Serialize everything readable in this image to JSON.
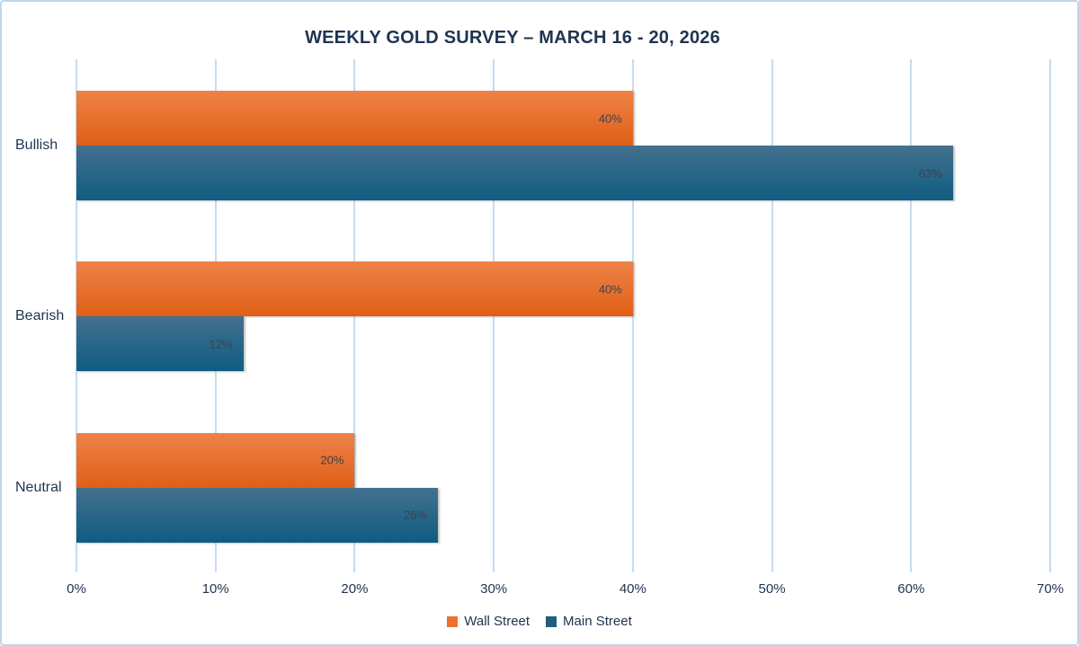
{
  "title": "WEEKLY GOLD SURVEY – MARCH 16 - 20, 2026",
  "chart_data": {
    "type": "bar",
    "orientation": "horizontal",
    "title": "WEEKLY GOLD SURVEY – MARCH 16 - 20, 2026",
    "categories": [
      "Bullish",
      "Bearish",
      "Neutral"
    ],
    "series": [
      {
        "name": "Wall Street",
        "values": [
          40,
          40,
          20
        ],
        "labels": [
          "40%",
          "40%",
          "20%"
        ],
        "color_top": "#ee8248",
        "color_bottom": "#e05f16",
        "legend_color": "#ed7231"
      },
      {
        "name": "Main Street",
        "values": [
          63,
          12,
          26
        ],
        "labels": [
          "63%",
          "12%",
          "26%"
        ],
        "color_top": "#44708e",
        "color_bottom": "#0e5d82",
        "legend_color": "#205d7e"
      }
    ],
    "xticks": [
      "0%",
      "10%",
      "20%",
      "30%",
      "40%",
      "50%",
      "60%",
      "70%"
    ],
    "xlim": [
      0,
      70
    ],
    "grid": "vertical",
    "legend_position": "bottom",
    "value_labels": "inside-end"
  },
  "colors": {
    "background": "#ffffff",
    "border": "#bdd7ee",
    "gridline": "#c7dbf0",
    "title_text": "#1f3450",
    "axis_text": "#1f3450",
    "value_label_text": "#39424e"
  }
}
